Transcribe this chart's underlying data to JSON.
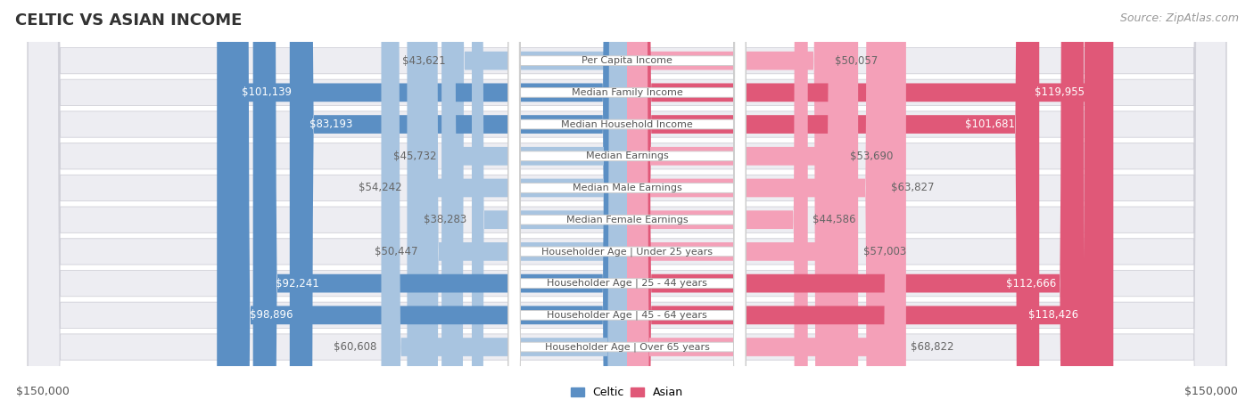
{
  "title": "CELTIC VS ASIAN INCOME",
  "source": "Source: ZipAtlas.com",
  "categories": [
    "Per Capita Income",
    "Median Family Income",
    "Median Household Income",
    "Median Earnings",
    "Median Male Earnings",
    "Median Female Earnings",
    "Householder Age | Under 25 years",
    "Householder Age | 25 - 44 years",
    "Householder Age | 45 - 64 years",
    "Householder Age | Over 65 years"
  ],
  "celtic_values": [
    43621,
    101139,
    83193,
    45732,
    54242,
    38283,
    50447,
    92241,
    98896,
    60608
  ],
  "asian_values": [
    50057,
    119955,
    101681,
    53690,
    63827,
    44586,
    57003,
    112666,
    118426,
    68822
  ],
  "celtic_labels": [
    "$43,621",
    "$101,139",
    "$83,193",
    "$45,732",
    "$54,242",
    "$38,283",
    "$50,447",
    "$92,241",
    "$98,896",
    "$60,608"
  ],
  "asian_labels": [
    "$50,057",
    "$119,955",
    "$101,681",
    "$53,690",
    "$63,827",
    "$44,586",
    "$57,003",
    "$112,666",
    "$118,426",
    "$68,822"
  ],
  "max_value": 150000,
  "celtic_color_light": "#a8c4e0",
  "celtic_color_dark": "#5b8fc4",
  "asian_color_light": "#f4a0b8",
  "asian_color_dark": "#e05878",
  "row_bg_color": "#ededf2",
  "label_color_inside": "#ffffff",
  "label_color_outside": "#666666",
  "category_box_color": "#ffffff",
  "category_text_color": "#555555",
  "title_fontsize": 13,
  "source_fontsize": 9,
  "value_fontsize": 8.5,
  "category_fontsize": 8,
  "legend_fontsize": 9,
  "axis_fontsize": 9,
  "inside_label_threshold": 70000
}
